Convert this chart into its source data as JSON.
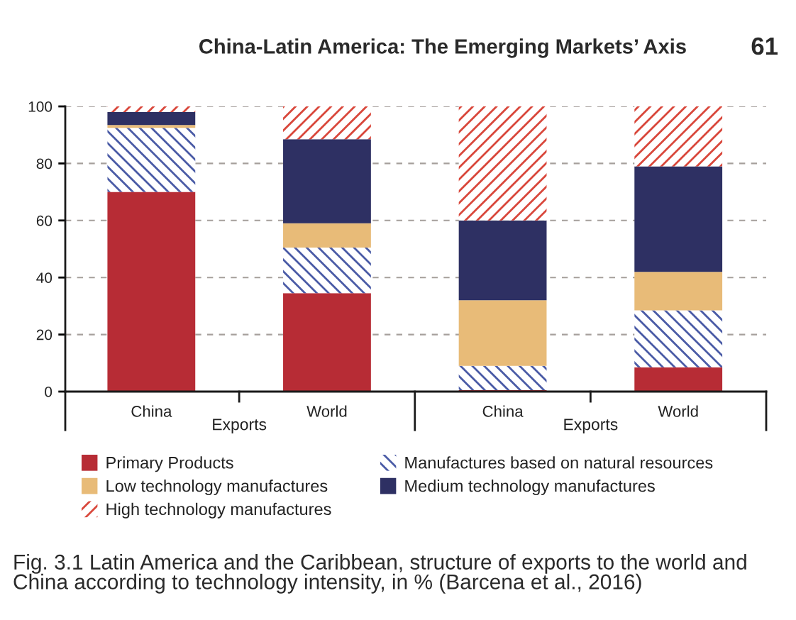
{
  "chart_data": {
    "type": "bar",
    "stacked": true,
    "title": "Fig. 3.1 Latin America and the Caribbean, structure of exports to the world and China according to technology intensity, in % (Barcena et al., 2016)",
    "annotations": [
      "China-Latin America: The Emerging Markets’ Axis",
      "61",
      "Exports",
      "Exports"
    ],
    "categories": [
      "China",
      "World",
      "China",
      "World"
    ],
    "series": [
      {
        "name": "Primary Products",
        "color": "#b72c35",
        "values": [
          70,
          34.5,
          0.5,
          8.5
        ]
      },
      {
        "name": "Manufactures based on natural resources",
        "color": "#4a5ba6",
        "values": [
          22.5,
          16,
          8.5,
          20
        ]
      },
      {
        "name": "Low technology manufactures",
        "color": "#e8bb78",
        "values": [
          1,
          8.5,
          23,
          13.5
        ]
      },
      {
        "name": "Medium technology manufactures",
        "color": "#2e3063",
        "values": [
          4.5,
          29.5,
          28,
          37
        ]
      },
      {
        "name": "High technology manufactures",
        "color": "#d9473b",
        "values": [
          2,
          11.5,
          40,
          21
        ]
      }
    ],
    "ylim": [
      0,
      100
    ],
    "yticks": [
      0,
      20,
      40,
      60,
      80,
      100
    ],
    "grid": "y",
    "legend": "bottom"
  }
}
